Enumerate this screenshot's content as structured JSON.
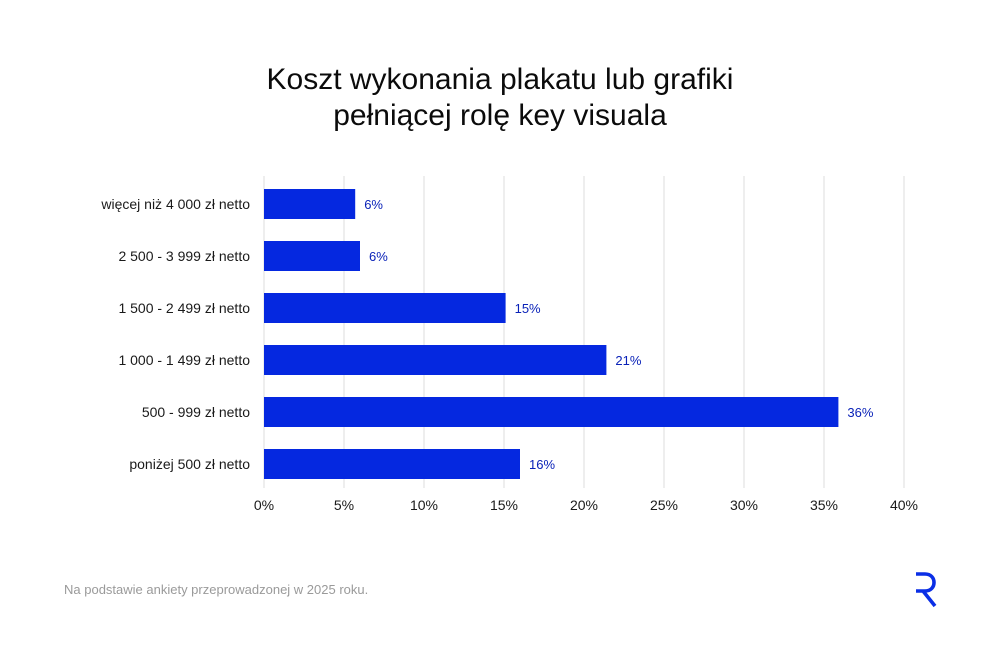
{
  "title_lines": [
    "Koszt wykonania plakatu lub grafiki",
    "pełniącej rolę key visuala"
  ],
  "footnote": "Na podstawie ankiety przeprowadzonej w 2025 roku.",
  "colors": {
    "bar": "#0528e0",
    "data_label": "#0a22b8",
    "grid": "#dcdcdc",
    "logo": "#0a2ee6"
  },
  "logo_icon": "brand-r-logo-icon",
  "chart_data": {
    "type": "bar",
    "orientation": "horizontal",
    "title": "Koszt wykonania plakatu lub grafiki pełniącej rolę key visuala",
    "categories": [
      "więcej niż 4 000 zł netto",
      "2 500 - 3 999 zł netto",
      "1 500 - 2 499 zł netto",
      "1 000 - 1 499 zł netto",
      "500 - 999 zł netto",
      "poniżej 500 zł netto"
    ],
    "values": [
      5.7,
      6.0,
      15.1,
      21.4,
      35.9,
      16.0
    ],
    "data_labels": [
      "6%",
      "6%",
      "15%",
      "21%",
      "36%",
      "16%"
    ],
    "xlim": [
      0,
      40
    ],
    "x_ticks": [
      0,
      5,
      10,
      15,
      20,
      25,
      30,
      35,
      40
    ],
    "x_tick_labels": [
      "0%",
      "5%",
      "10%",
      "15%",
      "20%",
      "25%",
      "30%",
      "35%",
      "40%"
    ],
    "grid": true,
    "legend": false
  }
}
